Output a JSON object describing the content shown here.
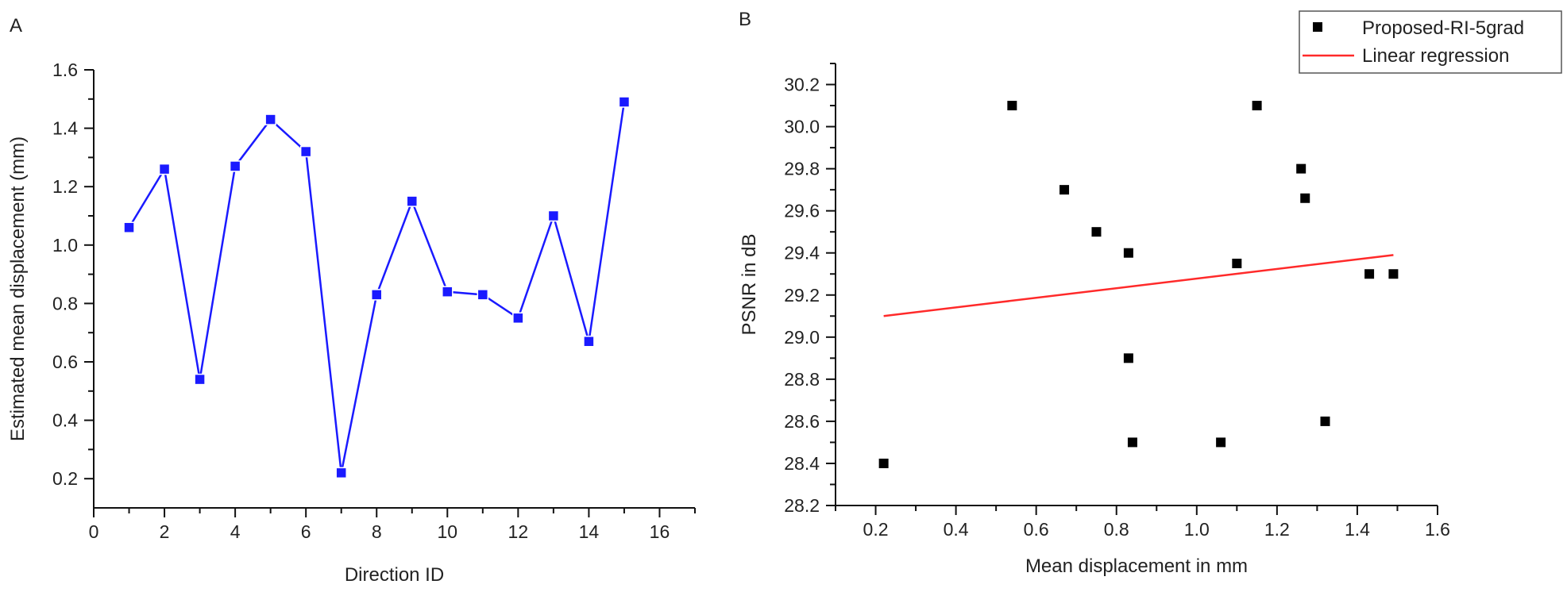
{
  "chart_data": [
    {
      "panel": "A",
      "type": "line",
      "title": "",
      "xlabel": "Direction ID",
      "ylabel": "Estimated mean displacement (mm)",
      "xlim": [
        0,
        17
      ],
      "ylim": [
        0.1,
        1.6
      ],
      "xticks": [
        0,
        2,
        4,
        6,
        8,
        10,
        12,
        14,
        16
      ],
      "yticks": [
        0.2,
        0.4,
        0.6,
        0.8,
        1.0,
        1.2,
        1.4,
        1.6
      ],
      "x_tick_labels": [
        "0",
        "2",
        "4",
        "6",
        "8",
        "10",
        "12",
        "14",
        "16"
      ],
      "y_tick_labels": [
        "0.2",
        "0.4",
        "0.6",
        "0.8",
        "1.0",
        "1.2",
        "1.4",
        "1.6"
      ],
      "grid": false,
      "series": [
        {
          "color": "#1a1aff",
          "marker": "square",
          "x": [
            1,
            2,
            3,
            4,
            5,
            6,
            7,
            8,
            9,
            10,
            11,
            12,
            13,
            14,
            15
          ],
          "y": [
            1.06,
            1.26,
            0.54,
            1.27,
            1.43,
            1.32,
            0.22,
            0.83,
            1.15,
            0.84,
            0.83,
            0.75,
            1.1,
            0.67,
            1.49
          ]
        }
      ]
    },
    {
      "panel": "B",
      "type": "scatter",
      "title": "",
      "xlabel": "Mean displacement in mm",
      "ylabel": "PSNR in dB",
      "xlim": [
        0.1,
        1.6
      ],
      "ylim": [
        28.2,
        30.3
      ],
      "xticks": [
        0.2,
        0.4,
        0.6,
        0.8,
        1.0,
        1.2,
        1.4,
        1.6
      ],
      "yticks": [
        28.2,
        28.4,
        28.6,
        28.8,
        29.0,
        29.2,
        29.4,
        29.6,
        29.8,
        30.0,
        30.2
      ],
      "x_tick_labels": [
        "0.2",
        "0.4",
        "0.6",
        "0.8",
        "1.0",
        "1.2",
        "1.4",
        "1.6"
      ],
      "y_tick_labels": [
        "28.2",
        "28.4",
        "28.6",
        "28.8",
        "29.0",
        "29.2",
        "29.4",
        "29.6",
        "29.8",
        "30.0",
        "30.2"
      ],
      "grid": false,
      "legend_position": "top-right",
      "series": [
        {
          "name": "Proposed-RI-5grad",
          "type": "scatter",
          "color": "#000000",
          "marker": "square",
          "x": [
            0.22,
            0.54,
            0.67,
            0.75,
            0.83,
            0.83,
            0.84,
            1.06,
            1.1,
            1.15,
            1.26,
            1.27,
            1.32,
            1.43,
            1.49
          ],
          "y": [
            28.4,
            30.1,
            29.7,
            29.5,
            29.4,
            28.9,
            28.5,
            28.5,
            29.35,
            30.1,
            29.8,
            29.66,
            28.6,
            29.3,
            29.3
          ]
        },
        {
          "name": "Linear regression",
          "type": "line",
          "color": "#ff2a2a",
          "x": [
            0.22,
            1.49
          ],
          "y": [
            29.1,
            29.39
          ]
        }
      ]
    }
  ]
}
